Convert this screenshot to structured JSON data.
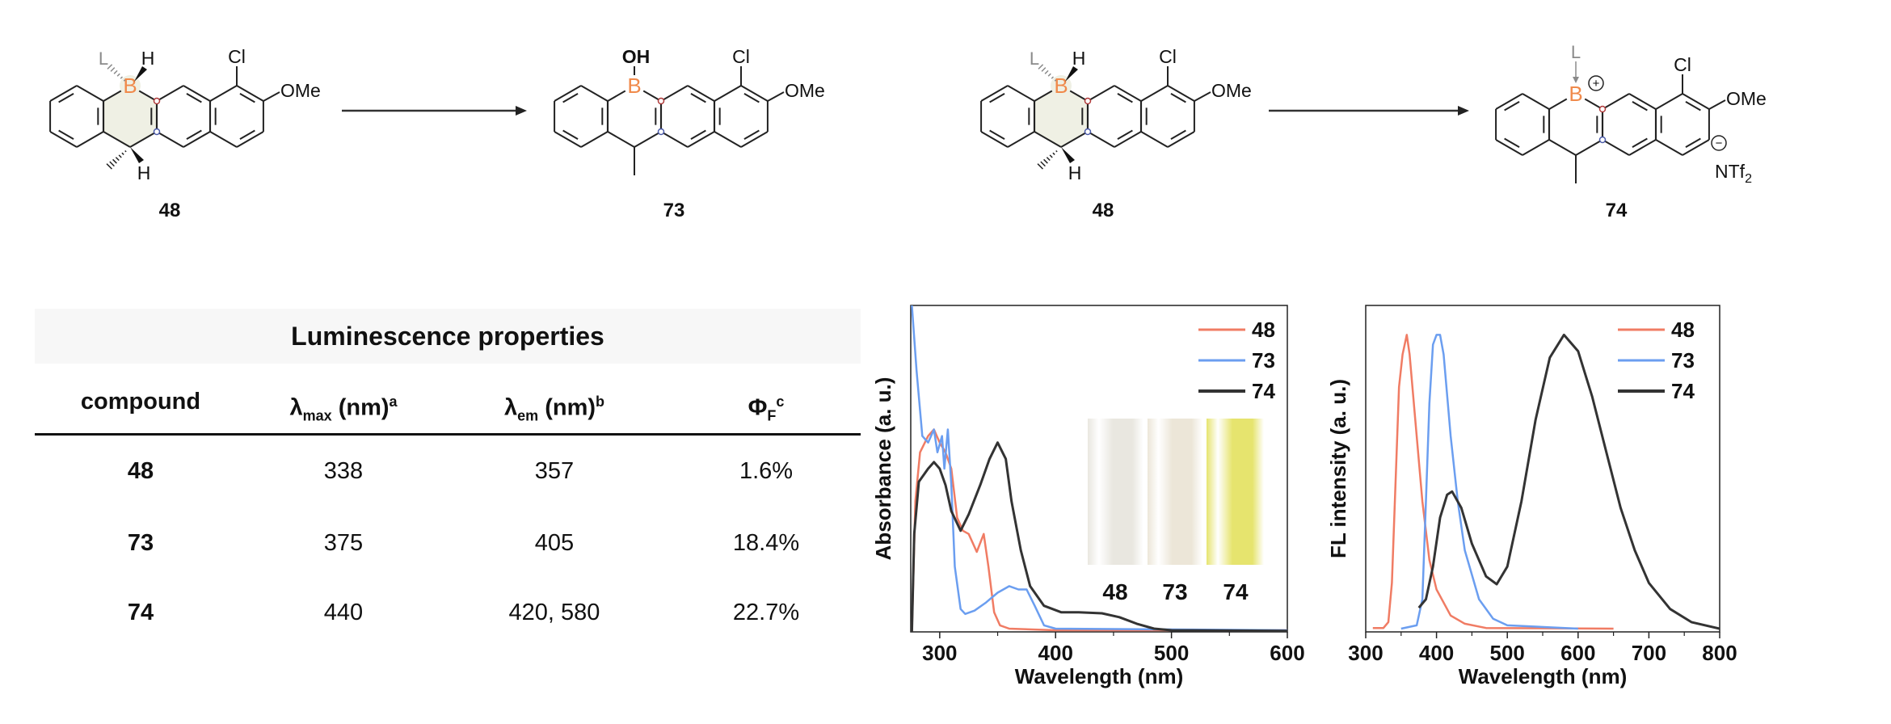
{
  "scheme": {
    "structures": [
      {
        "label": "48",
        "variant": "48",
        "B": "B",
        "Cl": "Cl",
        "OMe": "OMe",
        "H": "H",
        "L": "L"
      },
      {
        "label": "73",
        "variant": "73",
        "B": "B",
        "Cl": "Cl",
        "OMe": "OMe",
        "OH": "OH"
      },
      {
        "label": "48",
        "variant": "48",
        "B": "B",
        "Cl": "Cl",
        "OMe": "OMe",
        "H": "H",
        "L": "L"
      },
      {
        "label": "74",
        "variant": "74",
        "B": "B",
        "Cl": "Cl",
        "OMe": "OMe",
        "L": "L",
        "counterion": "NTf",
        "counterion_sub": "2",
        "plus": "+",
        "minus": "−"
      }
    ],
    "colors": {
      "boron": "#f08a4b",
      "ligand": "#8a8a8a",
      "shade": "#eff0e4",
      "dot_red": "#b03a3a",
      "dot_blue": "#4a5aa8"
    }
  },
  "table": {
    "title": "Luminescence properties",
    "headers": [
      {
        "text": "compound"
      },
      {
        "symbol": "λ",
        "sub": "max",
        "unit": " (nm)",
        "sup": "a"
      },
      {
        "symbol": "λ",
        "sub": "em",
        "unit": " (nm)",
        "sup": "b"
      },
      {
        "symbol": "Φ",
        "sub": "F",
        "unit": "",
        "sup": "c"
      }
    ],
    "rows": [
      {
        "compound": "48",
        "lmax": "338",
        "lem": "357",
        "phi": "1.6%"
      },
      {
        "compound": "73",
        "lmax": "375",
        "lem": "405",
        "phi": "18.4%"
      },
      {
        "compound": "74",
        "lmax": "440",
        "lem": "420, 580",
        "phi": "22.7%"
      }
    ]
  },
  "inset_photo": {
    "vials": [
      {
        "label": "48",
        "color": "#e9e7e0"
      },
      {
        "label": "73",
        "color": "#ece6d8"
      },
      {
        "label": "74",
        "color": "#e6e46e"
      }
    ]
  },
  "chart_data": [
    {
      "type": "line",
      "xlabel": "Wavelength (nm)",
      "ylabel": "Absorbance (a. u.)",
      "xlim": [
        275,
        600
      ],
      "ylim": [
        0,
        1
      ],
      "x_ticks": [
        "300",
        "400",
        "500",
        "600"
      ],
      "grid": false,
      "legend": "top-right",
      "series": [
        {
          "name": "48",
          "color": "#f07c64",
          "points": [
            [
              276,
              0
            ],
            [
              279,
              0.4
            ],
            [
              283,
              0.55
            ],
            [
              290,
              0.6
            ],
            [
              295,
              0.62
            ],
            [
              300,
              0.58
            ],
            [
              305,
              0.55
            ],
            [
              310,
              0.5
            ],
            [
              315,
              0.35
            ],
            [
              320,
              0.31
            ],
            [
              325,
              0.3
            ],
            [
              332,
              0.245
            ],
            [
              338,
              0.3
            ],
            [
              342,
              0.2
            ],
            [
              347,
              0.06
            ],
            [
              352,
              0.02
            ],
            [
              360,
              0.01
            ],
            [
              400,
              0.005
            ],
            [
              600,
              0.005
            ]
          ]
        },
        {
          "name": "73",
          "color": "#6b9ef0",
          "points": [
            [
              276,
              1.0
            ],
            [
              280,
              0.8
            ],
            [
              285,
              0.6
            ],
            [
              290,
              0.58
            ],
            [
              295,
              0.62
            ],
            [
              298,
              0.55
            ],
            [
              302,
              0.6
            ],
            [
              304,
              0.5
            ],
            [
              307,
              0.62
            ],
            [
              310,
              0.45
            ],
            [
              313,
              0.2
            ],
            [
              318,
              0.07
            ],
            [
              322,
              0.055
            ],
            [
              330,
              0.065
            ],
            [
              340,
              0.09
            ],
            [
              350,
              0.12
            ],
            [
              360,
              0.14
            ],
            [
              368,
              0.13
            ],
            [
              375,
              0.13
            ],
            [
              382,
              0.08
            ],
            [
              390,
              0.02
            ],
            [
              400,
              0.01
            ],
            [
              600,
              0.005
            ]
          ]
        },
        {
          "name": "74",
          "color": "#333333",
          "points": [
            [
              276,
              0
            ],
            [
              278,
              0.3
            ],
            [
              282,
              0.46
            ],
            [
              290,
              0.5
            ],
            [
              295,
              0.52
            ],
            [
              300,
              0.5
            ],
            [
              305,
              0.45
            ],
            [
              310,
              0.37
            ],
            [
              318,
              0.31
            ],
            [
              325,
              0.36
            ],
            [
              335,
              0.45
            ],
            [
              343,
              0.53
            ],
            [
              350,
              0.58
            ],
            [
              357,
              0.53
            ],
            [
              362,
              0.4
            ],
            [
              370,
              0.25
            ],
            [
              378,
              0.14
            ],
            [
              390,
              0.08
            ],
            [
              405,
              0.06
            ],
            [
              420,
              0.06
            ],
            [
              440,
              0.057
            ],
            [
              455,
              0.045
            ],
            [
              470,
              0.025
            ],
            [
              485,
              0.01
            ],
            [
              500,
              0.005
            ],
            [
              600,
              0.003
            ]
          ]
        }
      ]
    },
    {
      "type": "line",
      "xlabel": "Wavelength (nm)",
      "ylabel": "FL intensity (a. u.)",
      "xlim": [
        300,
        800
      ],
      "ylim": [
        0,
        1
      ],
      "x_ticks": [
        "300",
        "400",
        "500",
        "600",
        "700",
        "800"
      ],
      "grid": false,
      "legend": "top-right",
      "series": [
        {
          "name": "48",
          "color": "#f07c64",
          "points": [
            [
              310,
              0.012
            ],
            [
              325,
              0.012
            ],
            [
              332,
              0.03
            ],
            [
              337,
              0.15
            ],
            [
              342,
              0.45
            ],
            [
              347,
              0.75
            ],
            [
              352,
              0.85
            ],
            [
              358,
              0.91
            ],
            [
              362,
              0.85
            ],
            [
              370,
              0.65
            ],
            [
              380,
              0.4
            ],
            [
              390,
              0.22
            ],
            [
              400,
              0.13
            ],
            [
              420,
              0.05
            ],
            [
              440,
              0.025
            ],
            [
              470,
              0.012
            ],
            [
              650,
              0.01
            ]
          ]
        },
        {
          "name": "73",
          "color": "#6b9ef0",
          "points": [
            [
              350,
              0.01
            ],
            [
              372,
              0.02
            ],
            [
              380,
              0.1
            ],
            [
              385,
              0.4
            ],
            [
              390,
              0.7
            ],
            [
              395,
              0.88
            ],
            [
              400,
              0.91
            ],
            [
              405,
              0.91
            ],
            [
              410,
              0.85
            ],
            [
              420,
              0.6
            ],
            [
              430,
              0.4
            ],
            [
              440,
              0.25
            ],
            [
              460,
              0.1
            ],
            [
              480,
              0.04
            ],
            [
              500,
              0.02
            ],
            [
              600,
              0.01
            ]
          ]
        },
        {
          "name": "74",
          "color": "#333333",
          "points": [
            [
              375,
              0.074
            ],
            [
              385,
              0.1
            ],
            [
              395,
              0.2
            ],
            [
              405,
              0.35
            ],
            [
              415,
              0.42
            ],
            [
              422,
              0.43
            ],
            [
              435,
              0.38
            ],
            [
              450,
              0.27
            ],
            [
              470,
              0.17
            ],
            [
              485,
              0.146
            ],
            [
              500,
              0.2
            ],
            [
              520,
              0.4
            ],
            [
              540,
              0.65
            ],
            [
              560,
              0.84
            ],
            [
              580,
              0.91
            ],
            [
              600,
              0.86
            ],
            [
              620,
              0.72
            ],
            [
              640,
              0.55
            ],
            [
              660,
              0.38
            ],
            [
              680,
              0.25
            ],
            [
              700,
              0.15
            ],
            [
              730,
              0.07
            ],
            [
              760,
              0.03
            ],
            [
              800,
              0.01
            ]
          ]
        }
      ]
    }
  ]
}
